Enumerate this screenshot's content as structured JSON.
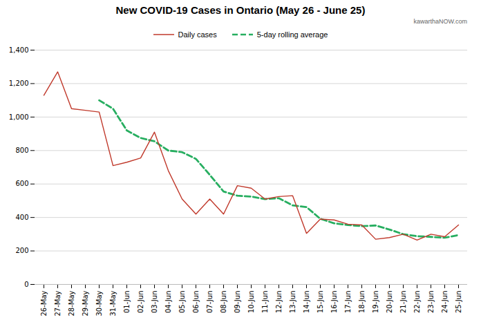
{
  "chart_data": {
    "type": "line",
    "title": "New COVID-19 Cases in Ontario (May 26 - June 25)",
    "annotations": [
      "kawarthaNOW.com"
    ],
    "categories": [
      "26-May",
      "27-May",
      "28-May",
      "29-May",
      "30-May",
      "31-May",
      "01-Jun",
      "02-Jun",
      "03-Jun",
      "04-Jun",
      "05-Jun",
      "06-Jun",
      "07-Jun",
      "08-Jun",
      "09-Jun",
      "10-Jun",
      "11-Jun",
      "12-Jun",
      "13-Jun",
      "14-Jun",
      "15-Jun",
      "16-Jun",
      "17-Jun",
      "18-Jun",
      "19-Jun",
      "20-Jun",
      "21-Jun",
      "22-Jun",
      "23-Jun",
      "24-Jun",
      "25-Jun"
    ],
    "series": [
      {
        "name": "Daily cases",
        "color": "#c0392b",
        "line_style": "solid",
        "values": [
          1130,
          1270,
          1050,
          1040,
          1030,
          710,
          730,
          755,
          910,
          680,
          510,
          420,
          510,
          420,
          590,
          575,
          510,
          525,
          530,
          305,
          390,
          385,
          360,
          355,
          270,
          280,
          300,
          265,
          300,
          285,
          355
        ]
      },
      {
        "name": "5-day rolling average",
        "color": "#27ae60",
        "line_style": "dashed",
        "values": [
          null,
          null,
          null,
          null,
          1100,
          1050,
          920,
          875,
          855,
          800,
          790,
          750,
          655,
          555,
          530,
          525,
          510,
          515,
          472,
          462,
          392,
          365,
          355,
          348,
          352,
          328,
          300,
          288,
          284,
          279,
          295
        ]
      }
    ],
    "ylim": [
      0,
      1400
    ],
    "yticks": [
      0,
      200,
      400,
      600,
      800,
      {
        "value": 1000,
        "label": "1,000"
      },
      {
        "value": 1200,
        "label": "1,200"
      },
      {
        "value": 1400,
        "label": "1,400"
      }
    ],
    "grid": true,
    "legend": "top"
  }
}
